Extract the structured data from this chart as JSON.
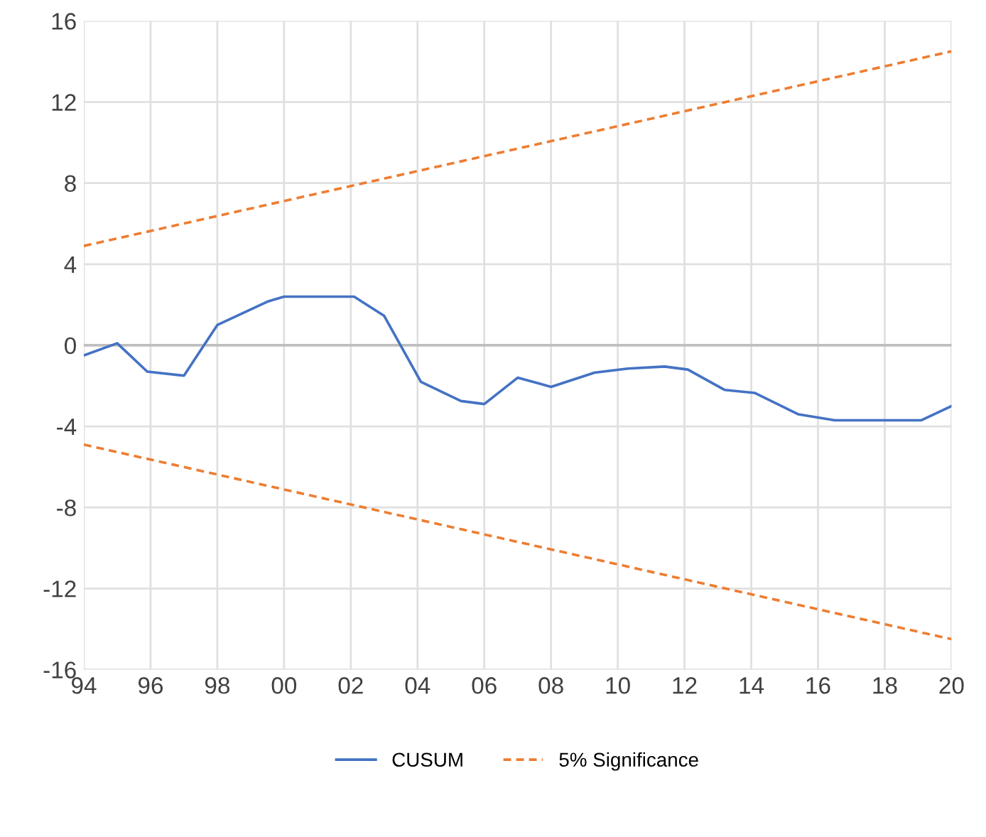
{
  "chart_data": {
    "type": "line",
    "series": [
      {
        "name": "CUSUM",
        "color": "#4472c4",
        "line_style": "solid",
        "x": [
          1994,
          1995,
          1995.9,
          1997,
          1998,
          1999.5,
          2000,
          2002.1,
          2003,
          2004.1,
          2005.3,
          2006,
          2007,
          2008,
          2009.3,
          2010.3,
          2011.4,
          2012.1,
          2013.2,
          2014.1,
          2015.4,
          2016.5,
          2019.1,
          2020
        ],
        "values": [
          -0.5,
          0.1,
          -1.3,
          -1.5,
          1.0,
          2.15,
          2.4,
          2.4,
          1.45,
          -1.8,
          -2.75,
          -2.9,
          -1.6,
          -2.05,
          -1.35,
          -1.15,
          -1.05,
          -1.2,
          -2.2,
          -2.35,
          -3.4,
          -3.7,
          -3.7,
          -3.0
        ]
      },
      {
        "name": "5% Significance",
        "color": "#ed7d31",
        "line_style": "dashed",
        "x": [
          1994,
          2020
        ],
        "values": [
          4.9,
          14.5
        ]
      },
      {
        "color": "#ed7d31",
        "line_style": "dashed",
        "x": [
          1994,
          2020
        ],
        "values": [
          -4.9,
          -14.5
        ]
      }
    ],
    "xlim": [
      1994,
      2020
    ],
    "xticks": [
      {
        "value": 1994,
        "label": "94"
      },
      {
        "value": 1996,
        "label": "96"
      },
      {
        "value": 1998,
        "label": "98"
      },
      {
        "value": 2000,
        "label": "00"
      },
      {
        "value": 2002,
        "label": "02"
      },
      {
        "value": 2004,
        "label": "04"
      },
      {
        "value": 2006,
        "label": "06"
      },
      {
        "value": 2008,
        "label": "08"
      },
      {
        "value": 2010,
        "label": "10"
      },
      {
        "value": 2012,
        "label": "12"
      },
      {
        "value": 2014,
        "label": "14"
      },
      {
        "value": 2016,
        "label": "16"
      },
      {
        "value": 2018,
        "label": "18"
      },
      {
        "value": 2020,
        "label": "20"
      }
    ],
    "ylim": [
      -16,
      16
    ],
    "yticks": [
      -16,
      -12,
      -8,
      -4,
      0,
      4,
      8,
      12,
      16
    ],
    "ref_lines": [
      {
        "axis": "y",
        "value": 0,
        "color": "#bfbfbf"
      }
    ],
    "grid": true,
    "legend": "bottom",
    "marker": "none"
  }
}
